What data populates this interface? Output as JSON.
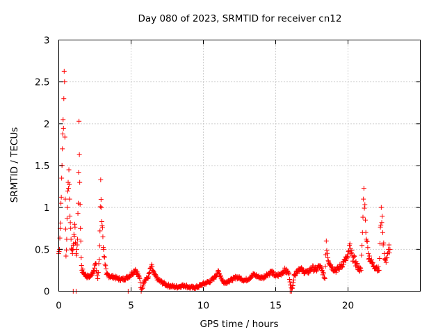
{
  "chart_data": {
    "type": "scatter",
    "marker": "+",
    "title": "Day 080 of 2023, SRMTID for receiver cn12",
    "xlabel": "GPS time / hours",
    "ylabel": "SRMTID / TECUs",
    "xlim": [
      0,
      25
    ],
    "ylim": [
      0,
      3
    ],
    "x_ticks": [
      0,
      5,
      10,
      15,
      20
    ],
    "y_ticks": [
      0,
      0.5,
      1,
      1.5,
      2,
      2.5,
      3
    ],
    "x_tick_labels": [
      "0",
      "5",
      "10",
      "15",
      "20"
    ],
    "y_tick_labels": [
      "0",
      "0.5",
      "1",
      "1.5",
      "2",
      "2.5",
      "3"
    ],
    "grid": true,
    "color": "#ff0000",
    "series": [
      {
        "name": "SRMTID",
        "points": [
          [
            0.0,
            0.45
          ],
          [
            0.05,
            0.5
          ],
          [
            0.1,
            0.75
          ],
          [
            0.15,
            1.05
          ],
          [
            0.2,
            1.35
          ],
          [
            0.25,
            1.7
          ],
          [
            0.3,
            2.05
          ],
          [
            0.35,
            2.3
          ],
          [
            0.4,
            2.5
          ],
          [
            0.45,
            1.1
          ],
          [
            0.5,
            0.42
          ],
          [
            0.55,
            0.62
          ],
          [
            0.6,
            1.0
          ],
          [
            0.65,
            1.3
          ],
          [
            0.7,
            1.45
          ],
          [
            0.75,
            1.1
          ],
          [
            0.8,
            0.82
          ],
          [
            0.85,
            0.62
          ],
          [
            0.9,
            0.5
          ],
          [
            0.95,
            0.45
          ],
          [
            1.0,
            0.55
          ],
          [
            1.05,
            0.68
          ],
          [
            1.1,
            0.8
          ],
          [
            1.15,
            0.58
          ],
          [
            1.2,
            0.45
          ],
          [
            1.25,
            0.5
          ],
          [
            1.3,
            0.62
          ],
          [
            1.35,
            1.05
          ],
          [
            1.4,
            2.03
          ],
          [
            1.45,
            1.3
          ],
          [
            1.5,
            0.75
          ],
          [
            1.55,
            0.4
          ],
          [
            1.6,
            0.25
          ],
          [
            1.8,
            0.2
          ],
          [
            2.0,
            0.17
          ],
          [
            2.2,
            0.18
          ],
          [
            2.4,
            0.25
          ],
          [
            2.55,
            0.33
          ],
          [
            2.7,
            0.15
          ],
          [
            2.8,
            0.38
          ],
          [
            2.85,
            0.72
          ],
          [
            2.9,
            1.33
          ],
          [
            2.95,
            1.0
          ],
          [
            3.0,
            0.78
          ],
          [
            3.05,
            0.65
          ],
          [
            3.1,
            0.5
          ],
          [
            3.2,
            0.32
          ],
          [
            3.3,
            0.2
          ],
          [
            3.5,
            0.18
          ],
          [
            3.8,
            0.17
          ],
          [
            4.1,
            0.15
          ],
          [
            4.4,
            0.14
          ],
          [
            4.7,
            0.16
          ],
          [
            5.0,
            0.2
          ],
          [
            5.3,
            0.26
          ],
          [
            5.6,
            0.15
          ],
          [
            5.7,
            0.0
          ],
          [
            5.9,
            0.12
          ],
          [
            6.2,
            0.17
          ],
          [
            6.4,
            0.3
          ],
          [
            6.6,
            0.2
          ],
          [
            6.9,
            0.13
          ],
          [
            7.2,
            0.1
          ],
          [
            7.5,
            0.07
          ],
          [
            7.8,
            0.06
          ],
          [
            8.1,
            0.05
          ],
          [
            8.4,
            0.06
          ],
          [
            8.7,
            0.07
          ],
          [
            9.0,
            0.05
          ],
          [
            9.3,
            0.04
          ],
          [
            9.6,
            0.05
          ],
          [
            9.9,
            0.08
          ],
          [
            10.2,
            0.1
          ],
          [
            10.5,
            0.12
          ],
          [
            10.8,
            0.17
          ],
          [
            11.0,
            0.23
          ],
          [
            11.2,
            0.18
          ],
          [
            11.4,
            0.1
          ],
          [
            11.7,
            0.12
          ],
          [
            12.0,
            0.14
          ],
          [
            12.3,
            0.17
          ],
          [
            12.6,
            0.15
          ],
          [
            12.9,
            0.13
          ],
          [
            13.2,
            0.16
          ],
          [
            13.5,
            0.2
          ],
          [
            13.8,
            0.17
          ],
          [
            14.1,
            0.16
          ],
          [
            14.4,
            0.2
          ],
          [
            14.7,
            0.23
          ],
          [
            15.0,
            0.18
          ],
          [
            15.3,
            0.2
          ],
          [
            15.6,
            0.25
          ],
          [
            15.9,
            0.22
          ],
          [
            16.1,
            0.0
          ],
          [
            16.3,
            0.2
          ],
          [
            16.6,
            0.27
          ],
          [
            16.9,
            0.24
          ],
          [
            17.2,
            0.22
          ],
          [
            17.5,
            0.28
          ],
          [
            17.8,
            0.25
          ],
          [
            18.0,
            0.3
          ],
          [
            18.2,
            0.25
          ],
          [
            18.4,
            0.15
          ],
          [
            18.5,
            0.6
          ],
          [
            18.6,
            0.4
          ],
          [
            18.9,
            0.28
          ],
          [
            19.2,
            0.25
          ],
          [
            19.5,
            0.3
          ],
          [
            19.8,
            0.37
          ],
          [
            20.0,
            0.4
          ],
          [
            20.1,
            0.55
          ],
          [
            20.2,
            0.45
          ],
          [
            20.3,
            0.42
          ],
          [
            20.5,
            0.35
          ],
          [
            20.7,
            0.28
          ],
          [
            20.9,
            0.25
          ],
          [
            21.0,
            0.7
          ],
          [
            21.1,
            1.23
          ],
          [
            21.2,
            0.85
          ],
          [
            21.3,
            0.6
          ],
          [
            21.4,
            0.45
          ],
          [
            21.6,
            0.35
          ],
          [
            21.8,
            0.3
          ],
          [
            22.0,
            0.28
          ],
          [
            22.15,
            0.25
          ],
          [
            22.3,
            1.0
          ],
          [
            22.4,
            0.7
          ],
          [
            22.5,
            0.45
          ],
          [
            22.6,
            0.37
          ],
          [
            22.7,
            0.4
          ],
          [
            22.8,
            0.5
          ],
          [
            22.9,
            0.5
          ]
        ]
      }
    ],
    "outliers_at_zero": [
      [
        1.0,
        0.0
      ],
      [
        1.2,
        0.0
      ],
      [
        4.8,
        0.0
      ],
      [
        16.0,
        0.0
      ]
    ]
  }
}
